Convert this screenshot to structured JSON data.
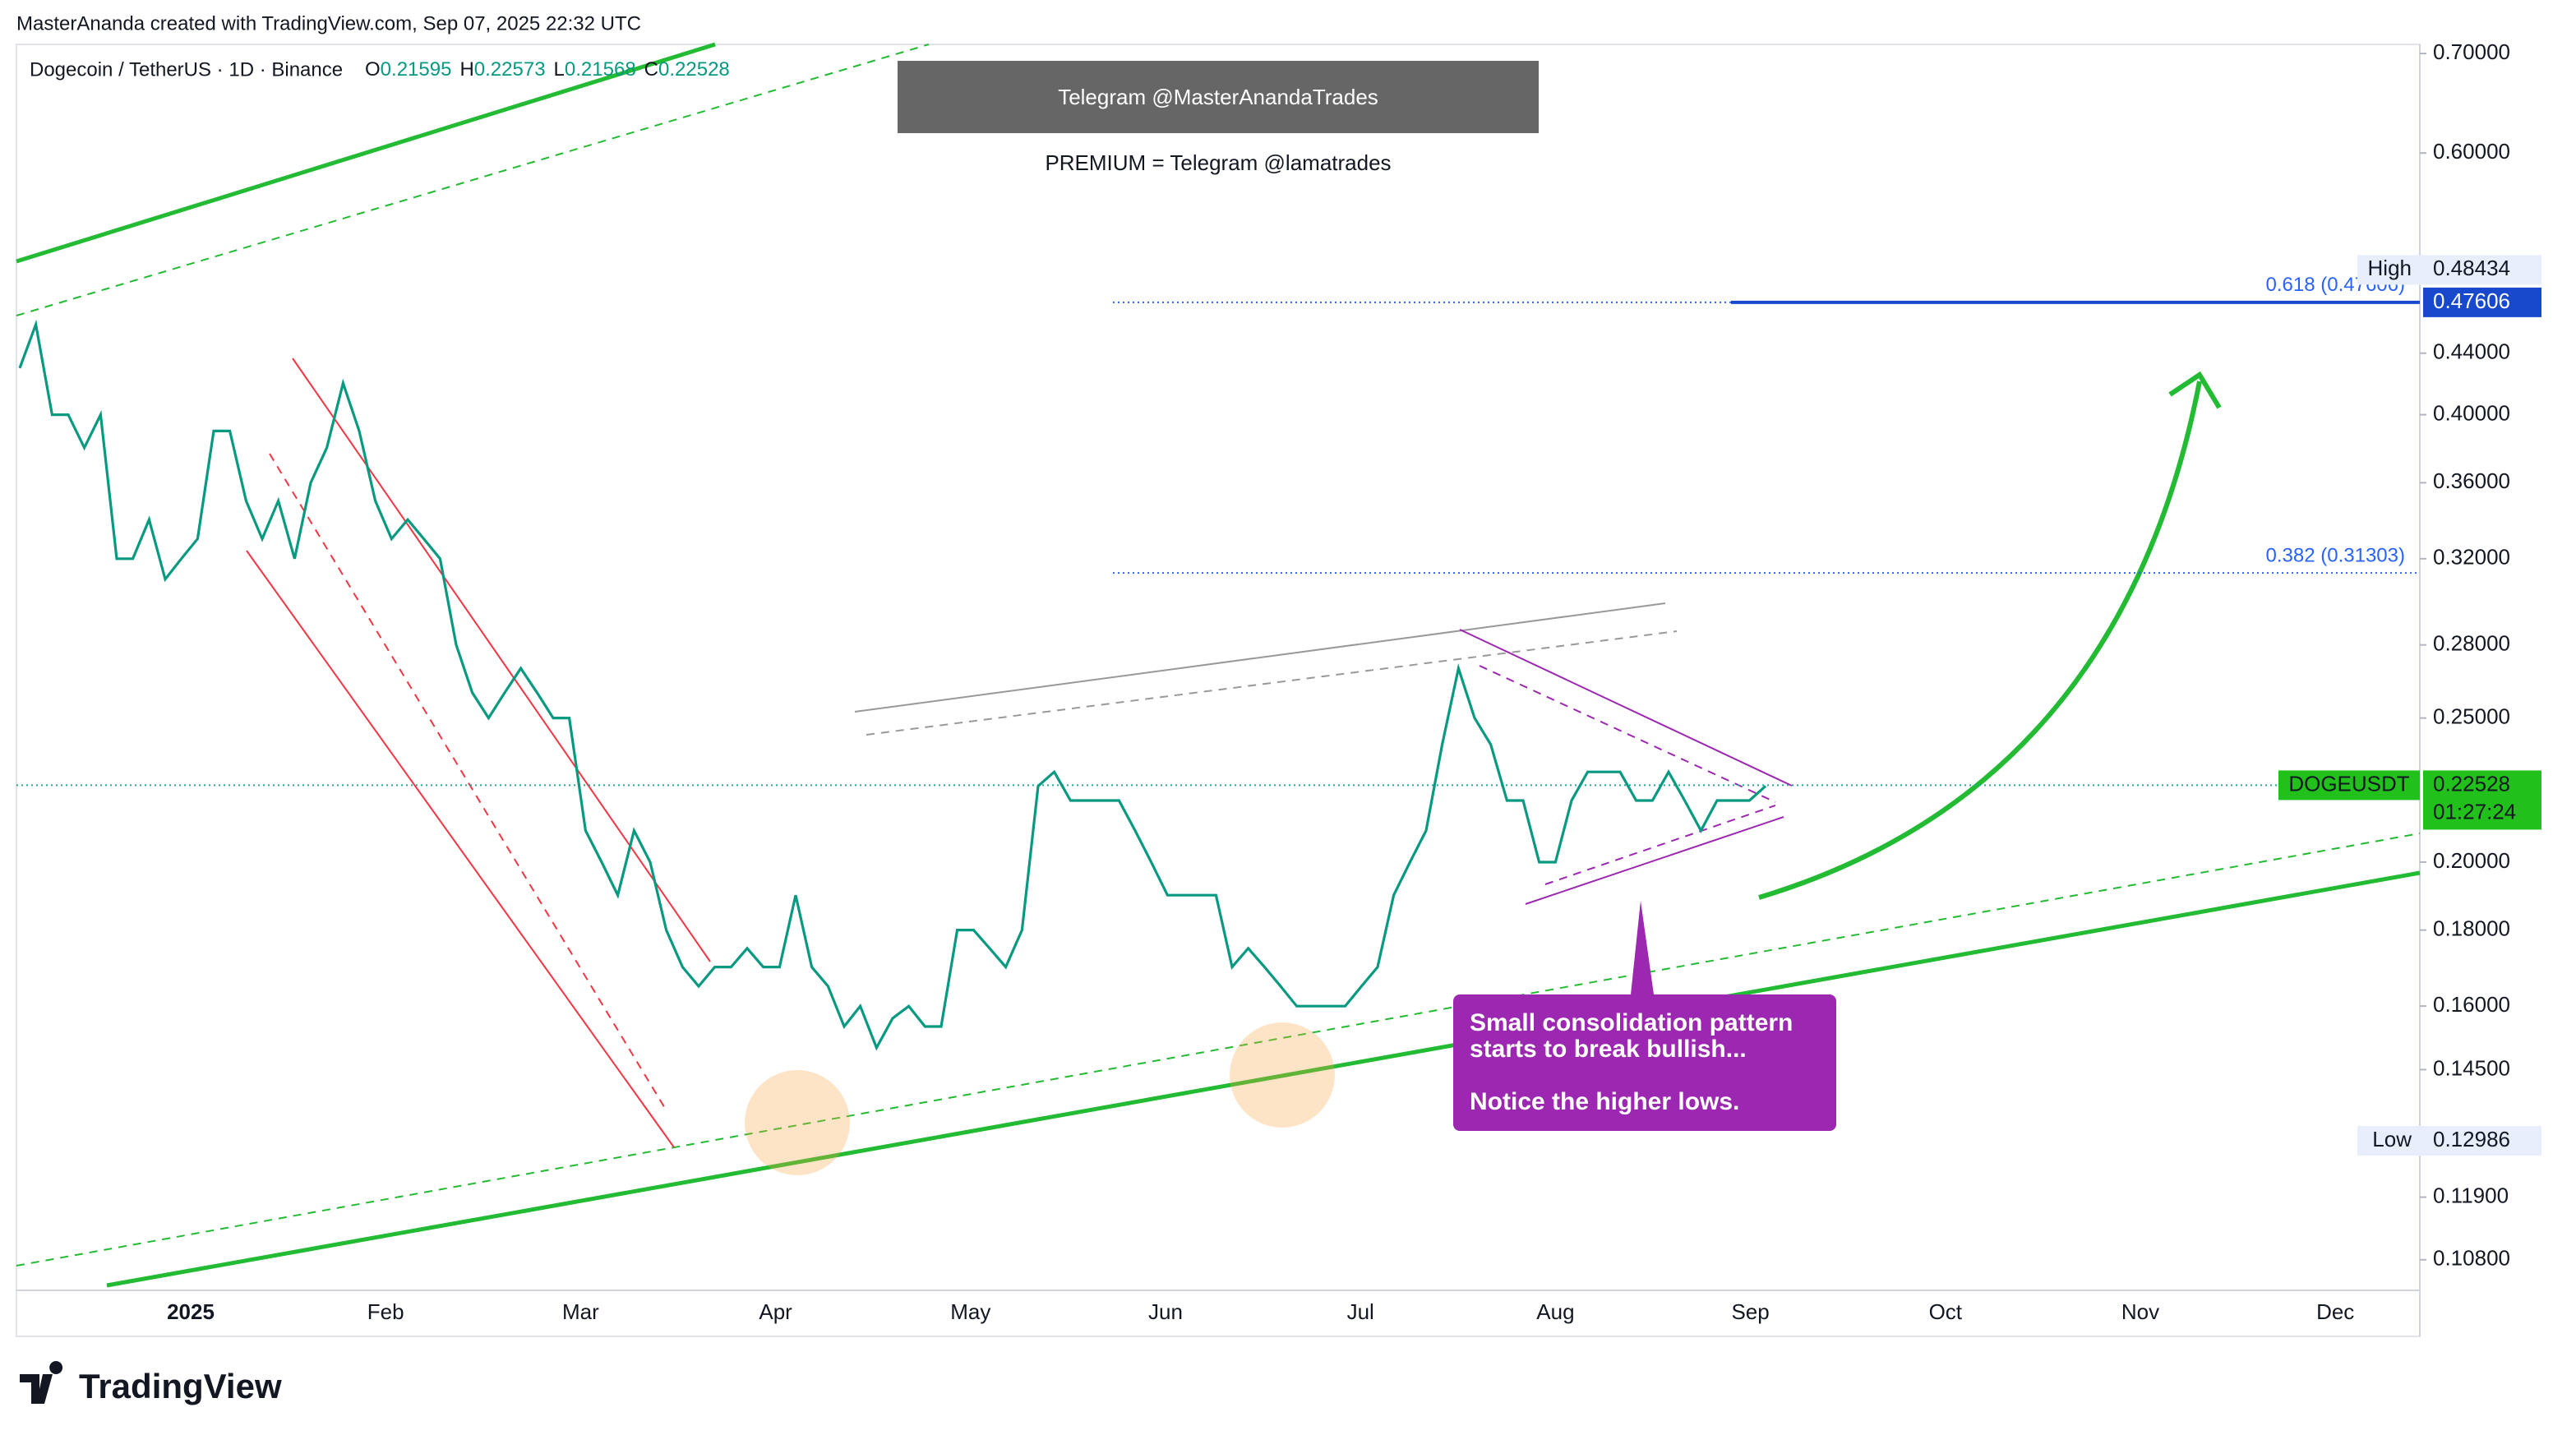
{
  "header": {
    "credit": "MasterAnanda created with TradingView.com, Sep 07, 2025 22:32 UTC"
  },
  "chart_data": {
    "type": "line",
    "title": "Dogecoin / TetherUS · 1D · Binance",
    "ohlc": [
      {
        "label": "O",
        "value": 0.21595
      },
      {
        "label": "H",
        "value": 0.22573
      },
      {
        "label": "L",
        "value": 0.21568
      },
      {
        "label": "C",
        "value": 0.22528
      }
    ],
    "log_scale": true,
    "ylim": [
      0.103,
      0.71
    ],
    "yticks": [
      {
        "value": 0.7,
        "label": "0.70000"
      },
      {
        "value": 0.6,
        "label": "0.60000"
      },
      {
        "value": 0.44,
        "label": "0.44000"
      },
      {
        "value": 0.4,
        "label": "0.40000"
      },
      {
        "value": 0.36,
        "label": "0.36000"
      },
      {
        "value": 0.32,
        "label": "0.32000"
      },
      {
        "value": 0.28,
        "label": "0.28000"
      },
      {
        "value": 0.25,
        "label": "0.25000"
      },
      {
        "value": 0.2,
        "label": "0.20000"
      },
      {
        "value": 0.18,
        "label": "0.18000"
      },
      {
        "value": 0.16,
        "label": "0.16000"
      },
      {
        "value": 0.145,
        "label": "0.14500"
      },
      {
        "value": 0.119,
        "label": "0.11900"
      },
      {
        "value": 0.108,
        "label": "0.10800"
      }
    ],
    "xticks": [
      "2025",
      "Feb",
      "Mar",
      "Apr",
      "May",
      "Jun",
      "Jul",
      "Aug",
      "Sep",
      "Oct",
      "Nov",
      "Dec"
    ],
    "series": [
      {
        "name": "DOGEUSDT",
        "color": "#089981",
        "values": [
          0.43,
          0.46,
          0.4,
          0.4,
          0.38,
          0.4,
          0.32,
          0.32,
          0.34,
          0.31,
          0.32,
          0.33,
          0.39,
          0.39,
          0.35,
          0.33,
          0.35,
          0.32,
          0.36,
          0.38,
          0.42,
          0.39,
          0.35,
          0.33,
          0.34,
          0.33,
          0.32,
          0.28,
          0.26,
          0.25,
          0.26,
          0.27,
          0.26,
          0.25,
          0.25,
          0.21,
          0.2,
          0.19,
          0.21,
          0.2,
          0.18,
          0.17,
          0.165,
          0.17,
          0.17,
          0.175,
          0.17,
          0.17,
          0.19,
          0.17,
          0.165,
          0.155,
          0.16,
          0.15,
          0.157,
          0.16,
          0.155,
          0.155,
          0.18,
          0.18,
          0.175,
          0.17,
          0.18,
          0.225,
          0.23,
          0.22,
          0.22,
          0.22,
          0.22,
          0.21,
          0.2,
          0.19,
          0.19,
          0.19,
          0.19,
          0.17,
          0.175,
          0.17,
          0.165,
          0.16,
          0.16,
          0.16,
          0.16,
          0.165,
          0.17,
          0.19,
          0.2,
          0.21,
          0.24,
          0.27,
          0.25,
          0.24,
          0.22,
          0.22,
          0.2,
          0.2,
          0.22,
          0.23,
          0.23,
          0.23,
          0.22,
          0.22,
          0.23,
          0.22,
          0.21,
          0.22,
          0.22,
          0.22,
          0.225
        ]
      }
    ],
    "fib_levels": [
      {
        "label": "0.618 (0.47606)",
        "value": 0.47606
      },
      {
        "label": "0.382 (0.31303)",
        "value": 0.31303
      }
    ],
    "price_labels": [
      {
        "label": "High",
        "value": 0.48434
      },
      {
        "label": "Low",
        "value": 0.12986
      }
    ],
    "target_price": 0.47606,
    "last_price": {
      "label": "DOGEUSDT",
      "value": 0.22528,
      "countdown": "01:27:24"
    },
    "watermark": "Telegram @MasterAnandaTrades",
    "premium": "PREMIUM = Telegram @lamatrades",
    "annotation": [
      "Small consolidation pattern",
      "starts to break bullish...",
      "Notice the higher lows."
    ]
  },
  "footer": {
    "logo": "TradingView"
  }
}
